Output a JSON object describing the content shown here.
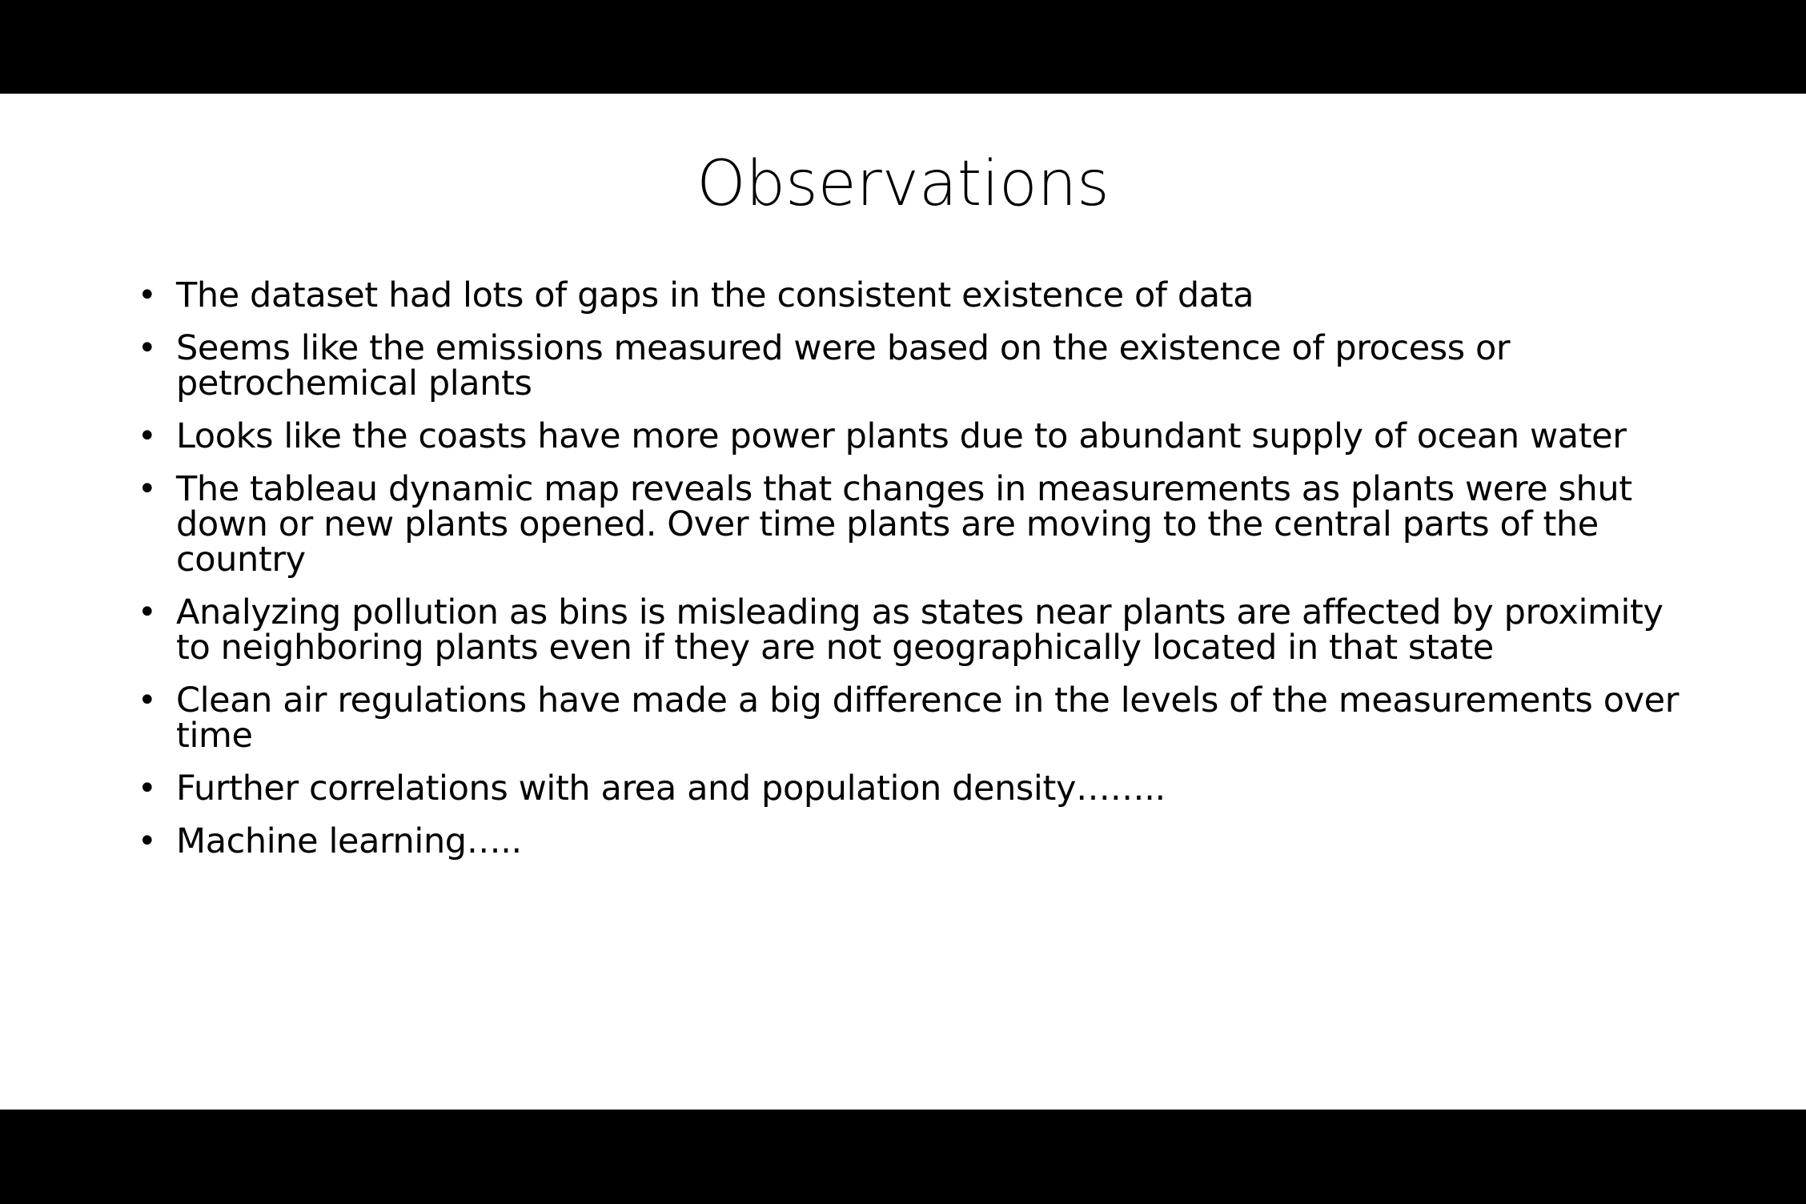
{
  "slide": {
    "title": "Observations",
    "bullets": [
      "The dataset had lots of gaps in the consistent existence of data",
      "Seems like the emissions measured were based on the existence of process or petrochemical plants",
      "Looks like the coasts have more power plants due to abundant supply of ocean water",
      "The tableau dynamic map reveals that changes in measurements as plants were shut down or new plants opened. Over time plants are moving to the central parts of the country",
      "Analyzing pollution as bins is misleading as states near plants are affected by proximity to neighboring plants even if they are not geographically located in that state",
      "Clean air regulations have made a big difference in the levels of the measurements over time",
      "Further correlations with area and population density……..",
      "Machine learning….."
    ],
    "bullet_glyph": "•"
  },
  "colors": {
    "letterbox": "#000000",
    "slide_background": "#ffffff",
    "text": "#000000"
  }
}
